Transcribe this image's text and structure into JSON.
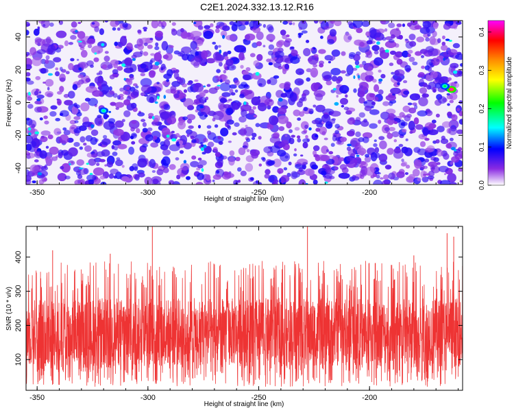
{
  "title": "C2E1.2024.332.13.12.R16",
  "chart_data": [
    {
      "type": "heatmap",
      "xlabel": "Height of straight line (km)",
      "ylabel": "Frequency (Hz)",
      "xlim": [
        -355,
        -158
      ],
      "ylim": [
        -50,
        50
      ],
      "xticks": [
        -350,
        -300,
        -250,
        -200
      ],
      "yticks": [
        -40,
        -20,
        0,
        20,
        40
      ],
      "colorbar": {
        "label": "Normalized spectral amplitude",
        "range": [
          0,
          0.43
        ],
        "ticks": [
          0,
          0.1,
          0.2,
          0.3,
          0.4
        ],
        "tick_labels": [
          "0.0",
          "0.1",
          "0.2",
          "0.3",
          "0.4"
        ],
        "colormap": [
          "#ffffff",
          "#8a2be2",
          "#0000ff",
          "#00ffff",
          "#00ff00",
          "#ffff00",
          "#ff8c00",
          "#ff0000",
          "#ff00ff"
        ]
      },
      "features": [
        {
          "x": -320,
          "y": -5,
          "value": 0.18
        },
        {
          "x": -163,
          "y": 8,
          "value": 0.43
        },
        {
          "x": -166,
          "y": 10,
          "value": 0.2
        }
      ],
      "background_level": [
        0.03,
        0.09
      ]
    },
    {
      "type": "line",
      "xlabel": "Height of straight line (km)",
      "ylabel": "SNR (10 * v/v)",
      "xlim": [
        -355,
        -158
      ],
      "ylim": [
        10,
        490
      ],
      "xticks": [
        -350,
        -300,
        -250,
        -200
      ],
      "yticks": [
        100,
        200,
        300,
        400
      ],
      "series_color": "#ee3333",
      "typical_range": [
        80,
        280
      ],
      "peaks": [
        {
          "x": -298,
          "y": 490
        },
        {
          "x": -228,
          "y": 490
        },
        {
          "x": -165,
          "y": 470
        },
        {
          "x": -162,
          "y": 460
        },
        {
          "x": -343,
          "y": 420
        },
        {
          "x": -317,
          "y": 410
        },
        {
          "x": -180,
          "y": 405
        }
      ]
    }
  ]
}
